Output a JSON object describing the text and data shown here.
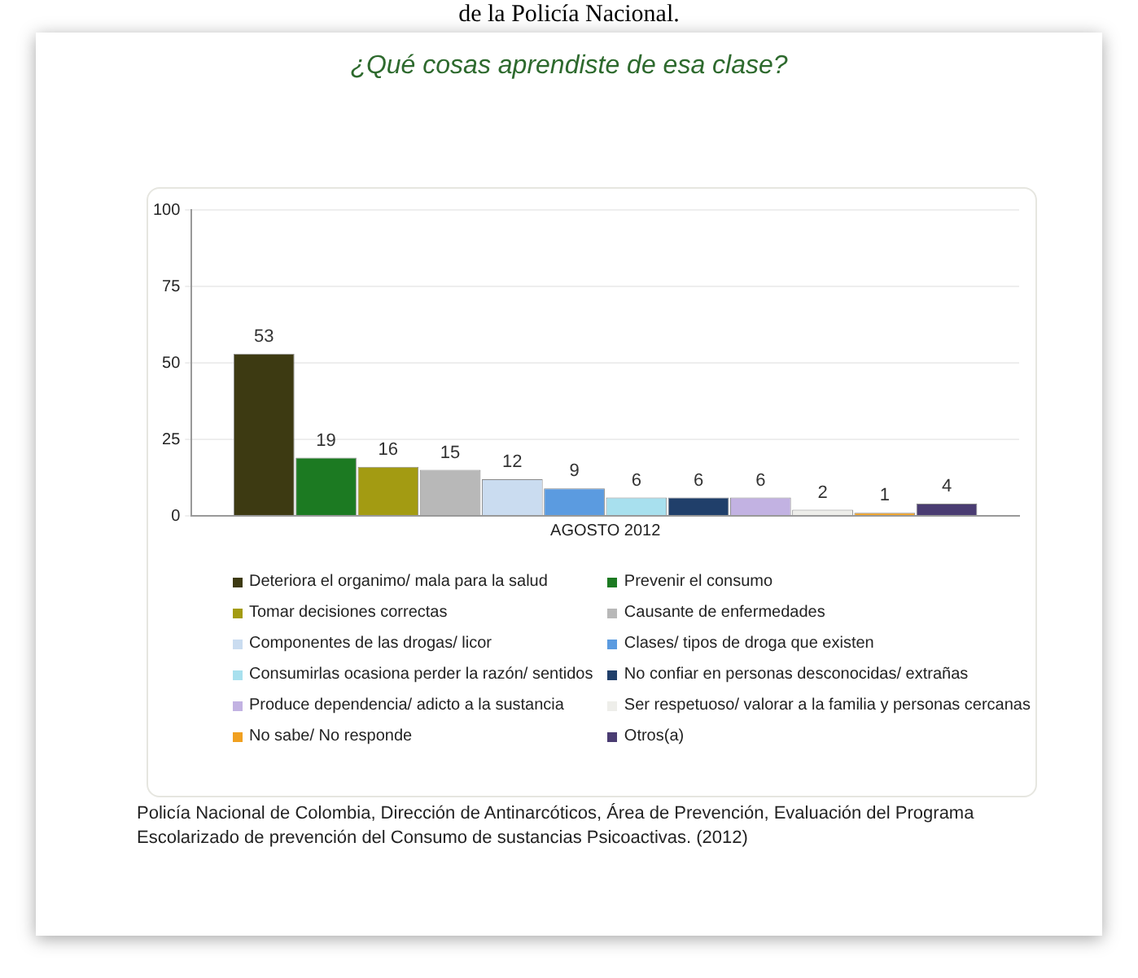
{
  "chart_data": {
    "type": "bar",
    "title": "¿Qué cosas aprendiste de esa clase?",
    "categories": [
      "AGOSTO 2012"
    ],
    "series": [
      {
        "name": "Deteriora el organimo/ mala para la salud",
        "color": "#3d3a12",
        "values": [
          53
        ]
      },
      {
        "name": "Prevenir el consumo",
        "color": "#1c7a22",
        "values": [
          19
        ]
      },
      {
        "name": "Tomar decisiones correctas",
        "color": "#a39b12",
        "values": [
          16
        ]
      },
      {
        "name": "Causante de enfermedades",
        "color": "#b8b8b8",
        "values": [
          15
        ]
      },
      {
        "name": "Componentes de las drogas/ licor",
        "color": "#cadcf0",
        "values": [
          12
        ]
      },
      {
        "name": "Clases/ tipos de droga que existen",
        "color": "#5b9be0",
        "values": [
          9
        ]
      },
      {
        "name": "Consumirlas ocasiona perder la razón/ sentidos",
        "color": "#a8e0ee",
        "values": [
          6
        ]
      },
      {
        "name": "No confiar en personas desconocidas/ extrañas",
        "color": "#203f6a",
        "values": [
          6
        ]
      },
      {
        "name": "Produce dependencia/ adicto a la sustancia",
        "color": "#c2b2e2",
        "values": [
          6
        ]
      },
      {
        "name": "Ser respetuoso/ valorar a la familia y  personas cercanas",
        "color": "#eeeeea",
        "values": [
          2
        ]
      },
      {
        "name": "No sabe/ No responde",
        "color": "#f0a020",
        "values": [
          1
        ]
      },
      {
        "name": "Otros(a)",
        "color": "#4a3c72",
        "values": [
          4
        ]
      }
    ],
    "ylim": [
      0,
      100
    ],
    "yticks": [
      0,
      25,
      50,
      75,
      100
    ],
    "grid": "y",
    "data_labels": true,
    "legend": "bottom",
    "annotations": [
      "de la Policía Nacional.",
      "Policía Nacional de Colombia, Dirección de Antinarcóticos, Área de Prevención, Evaluación del Programa Escolarizado de prevención del Consumo de sustancias Psicoactivas. (2012)"
    ]
  }
}
